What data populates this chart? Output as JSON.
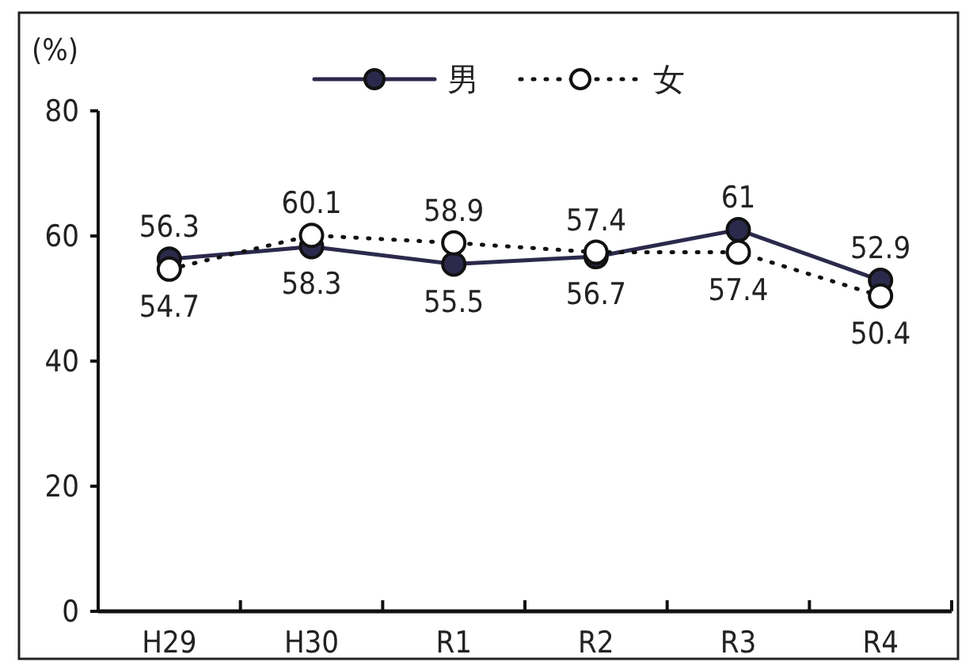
{
  "chart_data": {
    "type": "line",
    "ylabel": "(%)",
    "categories": [
      "H29",
      "H30",
      "R1",
      "R2",
      "R3",
      "R4"
    ],
    "series": [
      {
        "name": "男",
        "color": "#2b2a4c",
        "values": [
          56.3,
          58.3,
          55.5,
          56.7,
          61,
          52.9
        ],
        "line_style": "solid"
      },
      {
        "name": "女",
        "color": "#111111",
        "values": [
          54.7,
          60.1,
          58.9,
          57.4,
          57.4,
          50.4
        ],
        "line_style": "dotted"
      }
    ],
    "ylim": [
      0,
      80
    ],
    "yticks": [
      0,
      20,
      40,
      60,
      80
    ],
    "marker": "circle",
    "data_labels": true,
    "legend": "top",
    "grid": false
  }
}
